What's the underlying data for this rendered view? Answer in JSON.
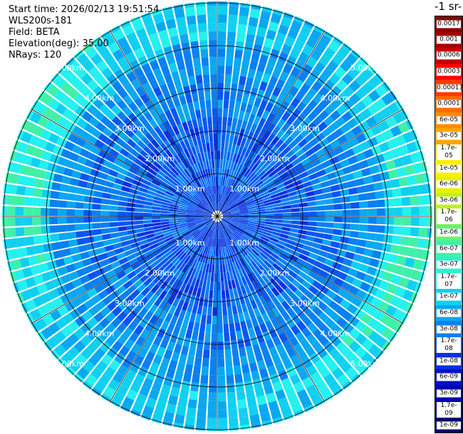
{
  "header": {
    "start_time": "Start time: 2026/02/13 19:51:54",
    "instrument": "WLS200s-181",
    "field": "Field: BETA",
    "elevation": "Elevation(deg): 35.00",
    "nrays": "NRays: 120"
  },
  "unit_label": "-1 sr-",
  "range_labels": [
    "1.00km",
    "2.00km",
    "3.00km",
    "4.00km",
    "5.00km"
  ],
  "colorbar": [
    {
      "label": "0.0017",
      "color": "#8b0000"
    },
    {
      "label": "0.001",
      "color": "#a50000"
    },
    {
      "label": "0.0006",
      "color": "#c40000"
    },
    {
      "label": "0.0003",
      "color": "#ff0000"
    },
    {
      "label": "0.00017",
      "color": "#ff3a00"
    },
    {
      "label": "0.0001",
      "color": "#ff6a00"
    },
    {
      "label": "6e-05",
      "color": "#ff8c00"
    },
    {
      "label": "3e-05",
      "color": "#ffa500"
    },
    {
      "label": "1.7e-05",
      "color": "#ffc800"
    },
    {
      "label": "1e-05",
      "color": "#ffee00"
    },
    {
      "label": "6e-06",
      "color": "#e8f000"
    },
    {
      "label": "3e-06",
      "color": "#c0f020"
    },
    {
      "label": "1.7e-06",
      "color": "#90f050"
    },
    {
      "label": "1e-06",
      "color": "#66f07a"
    },
    {
      "label": "6e-07",
      "color": "#40f0a8"
    },
    {
      "label": "3e-07",
      "color": "#2ff0d0"
    },
    {
      "label": "1.7e-07",
      "color": "#25f0f0"
    },
    {
      "label": "1e-07",
      "color": "#10d0f0"
    },
    {
      "label": "6e-08",
      "color": "#0aa8f0"
    },
    {
      "label": "3e-08",
      "color": "#0a80f0"
    },
    {
      "label": "1.7e-08",
      "color": "#0a55f0"
    },
    {
      "label": "1e-08",
      "color": "#0a30e0"
    },
    {
      "label": "6e-09",
      "color": "#0010c8"
    },
    {
      "label": "3e-09",
      "color": "#0000b0"
    },
    {
      "label": "1.7e-09",
      "color": "#00008a"
    },
    {
      "label": "1e-09",
      "color": "#000070"
    }
  ]
}
